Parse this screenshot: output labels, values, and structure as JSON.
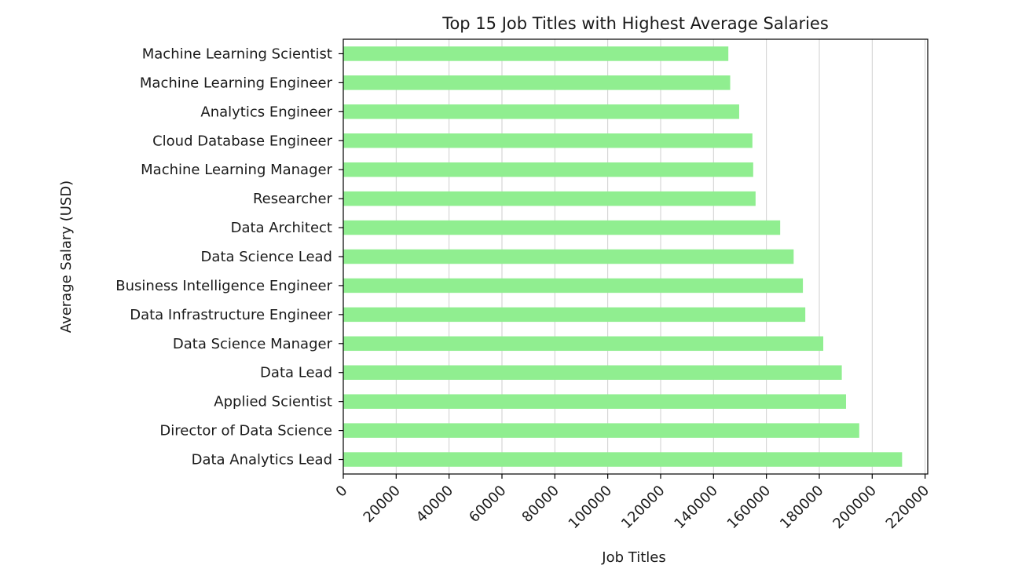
{
  "chart_data": {
    "type": "bar",
    "orientation": "horizontal",
    "title": "Top 15 Job Titles with Highest Average Salaries",
    "xlabel": "Job Titles",
    "ylabel": "Average Salary (USD)",
    "categories": [
      "Machine Learning Scientist",
      "Machine Learning Engineer",
      "Analytics Engineer",
      "Cloud Database Engineer",
      "Machine Learning Manager",
      "Researcher",
      "Data Architect",
      "Data Science Lead",
      "Business Intelligence Engineer",
      "Data Infrastructure Engineer",
      "Data Science Manager",
      "Data Lead",
      "Applied Scientist",
      "Director of Data Science",
      "Data Analytics Lead"
    ],
    "values": [
      145600,
      146300,
      149700,
      154700,
      155000,
      155900,
      165200,
      170300,
      173800,
      174700,
      181500,
      188500,
      190100,
      195100,
      211300
    ],
    "xlim": [
      0,
      221000
    ],
    "xticks": [
      0,
      20000,
      40000,
      60000,
      80000,
      100000,
      120000,
      140000,
      160000,
      180000,
      200000,
      220000
    ],
    "xtick_labels": [
      "0",
      "20000",
      "40000",
      "60000",
      "80000",
      "100000",
      "120000",
      "140000",
      "160000",
      "180000",
      "200000",
      "220000"
    ],
    "grid": "x",
    "bar_color": "#90ee90",
    "legend": "none"
  }
}
